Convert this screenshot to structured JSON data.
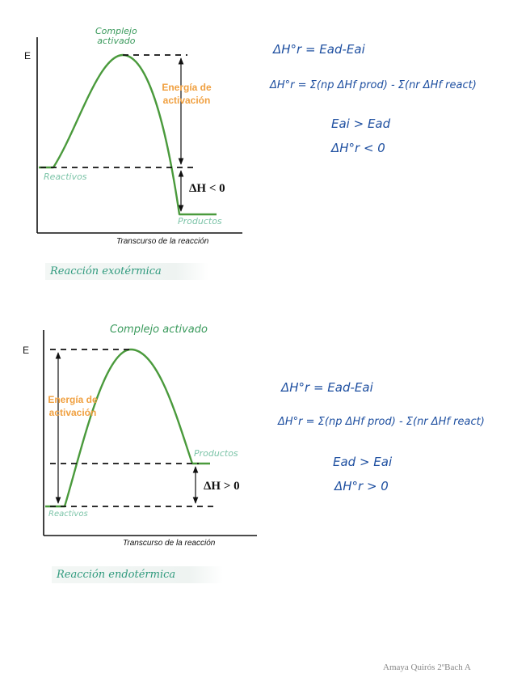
{
  "diagram_exo": {
    "e_axis": "E",
    "peak_label": "Complejo\nactivado",
    "energy_label": "Energía de activación",
    "reactants_label": "Reactivos",
    "products_label": "Productos",
    "deltaH_label": "ΔH < 0",
    "x_axis_label": "Transcurso de la reacción",
    "caption": "Reacción exotérmica",
    "equations": [
      "ΔH°r = Ead-Eai",
      "ΔH°r = Σ(np ΔHf prod) - Σ(nr ΔHf react)",
      "Eai > Ead",
      "ΔH°r < 0"
    ]
  },
  "diagram_endo": {
    "e_axis": "E",
    "peak_label": "Complejo activado",
    "energy_label": "Energía de activación",
    "reactants_label": "Reactivos",
    "products_label": "Productos",
    "deltaH_label": "ΔH > 0",
    "x_axis_label": "Transcurso de la reacción",
    "caption": "Reacción endotérmica",
    "equations": [
      "ΔH°r = Ead-Eai",
      "ΔH°r = Σ(np ΔHf prod) - Σ(nr ΔHf react)",
      "Ead > Eai",
      "ΔH°r > 0"
    ]
  },
  "footer": "Amaya Quirós 2ºBach A",
  "colors": {
    "curve": "#4a9a3c",
    "handwriting": "#1e4fa0",
    "energy": "#f0a040",
    "label": "#7cc4a8",
    "caption": "#2f9a7d"
  }
}
